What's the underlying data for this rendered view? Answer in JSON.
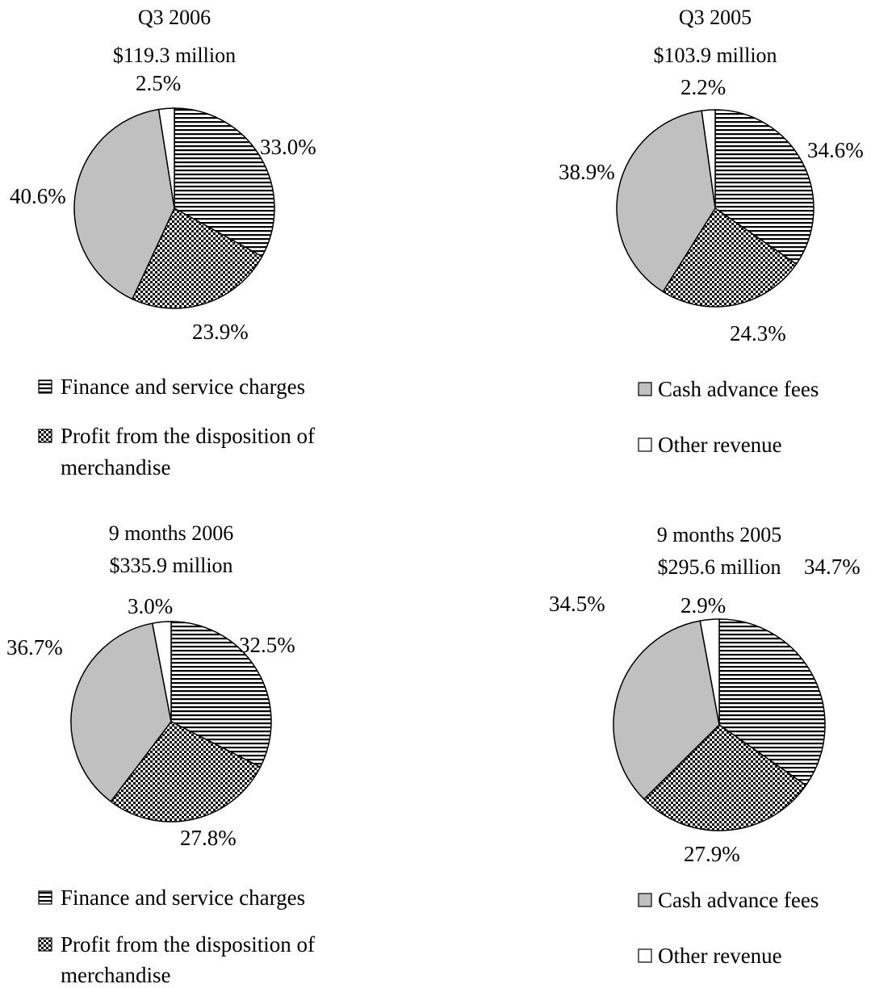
{
  "legend": {
    "finance": "Finance and service charges",
    "profit_line1": "Profit from the disposition of",
    "profit_line2": "merchandise",
    "cash": "Cash advance fees",
    "other": "Other revenue"
  },
  "chart_data": [
    {
      "type": "pie",
      "title": "Q3 2006",
      "subtitle": "$119.3 million",
      "slices": [
        {
          "name": "Finance and service charges",
          "value": 33.0,
          "label": "33.0%"
        },
        {
          "name": "Profit from the disposition of merchandise",
          "value": 23.9,
          "label": "23.9%"
        },
        {
          "name": "Cash advance fees",
          "value": 40.6,
          "label": "40.6%"
        },
        {
          "name": "Other revenue",
          "value": 2.5,
          "label": "2.5%"
        }
      ]
    },
    {
      "type": "pie",
      "title": "Q3 2005",
      "subtitle": "$103.9 million",
      "slices": [
        {
          "name": "Finance and service charges",
          "value": 34.6,
          "label": "34.6%"
        },
        {
          "name": "Profit from the disposition of merchandise",
          "value": 24.3,
          "label": "24.3%"
        },
        {
          "name": "Cash advance fees",
          "value": 38.9,
          "label": "38.9%"
        },
        {
          "name": "Other revenue",
          "value": 2.2,
          "label": "2.2%"
        }
      ]
    },
    {
      "type": "pie",
      "title": "9 months 2006",
      "subtitle": "$335.9 million",
      "slices": [
        {
          "name": "Finance and service charges",
          "value": 32.5,
          "label": "32.5%"
        },
        {
          "name": "Profit from the disposition of merchandise",
          "value": 27.8,
          "label": "27.8%"
        },
        {
          "name": "Cash advance fees",
          "value": 36.7,
          "label": "36.7%"
        },
        {
          "name": "Other revenue",
          "value": 3.0,
          "label": "3.0%"
        }
      ]
    },
    {
      "type": "pie",
      "title": "9 months 2005",
      "subtitle": "$295.6 million",
      "slices": [
        {
          "name": "Finance and service charges",
          "value": 34.7,
          "label": "34.7%"
        },
        {
          "name": "Profit from the disposition of merchandise",
          "value": 27.9,
          "label": "27.9%"
        },
        {
          "name": "Cash advance fees",
          "value": 34.5,
          "label": "34.5%"
        },
        {
          "name": "Other revenue",
          "value": 2.9,
          "label": "2.9%"
        }
      ]
    }
  ]
}
